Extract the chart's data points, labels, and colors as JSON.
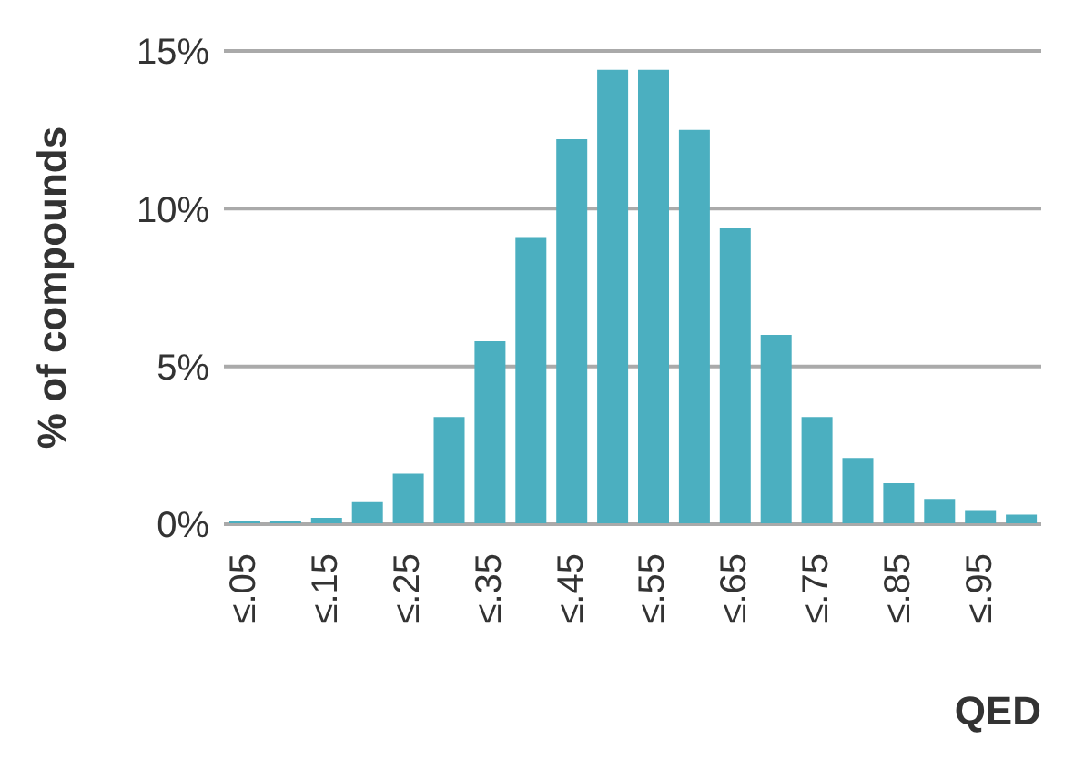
{
  "chart_data": {
    "type": "bar",
    "xlabel": "QED",
    "ylabel": "% of compounds",
    "categories": [
      "≤.05",
      null,
      "≤.15",
      null,
      "≤.25",
      null,
      "≤.35",
      null,
      "≤.45",
      null,
      "≤.55",
      null,
      "≤.65",
      null,
      "≤.75",
      null,
      "≤.85",
      null,
      "≤.95",
      null
    ],
    "values": [
      0.1,
      0.1,
      0.2,
      0.7,
      1.6,
      3.4,
      5.8,
      9.1,
      12.2,
      14.4,
      14.4,
      12.5,
      9.4,
      6.0,
      3.4,
      2.1,
      1.3,
      0.8,
      0.45,
      0.3
    ],
    "color": "#4bafc0",
    "ylim": [
      0,
      15
    ],
    "yticks": [
      {
        "value": 0,
        "label": "0%"
      },
      {
        "value": 5,
        "label": "5%"
      },
      {
        "value": 10,
        "label": "10%"
      },
      {
        "value": 15,
        "label": "15%"
      }
    ],
    "grid": "y"
  }
}
